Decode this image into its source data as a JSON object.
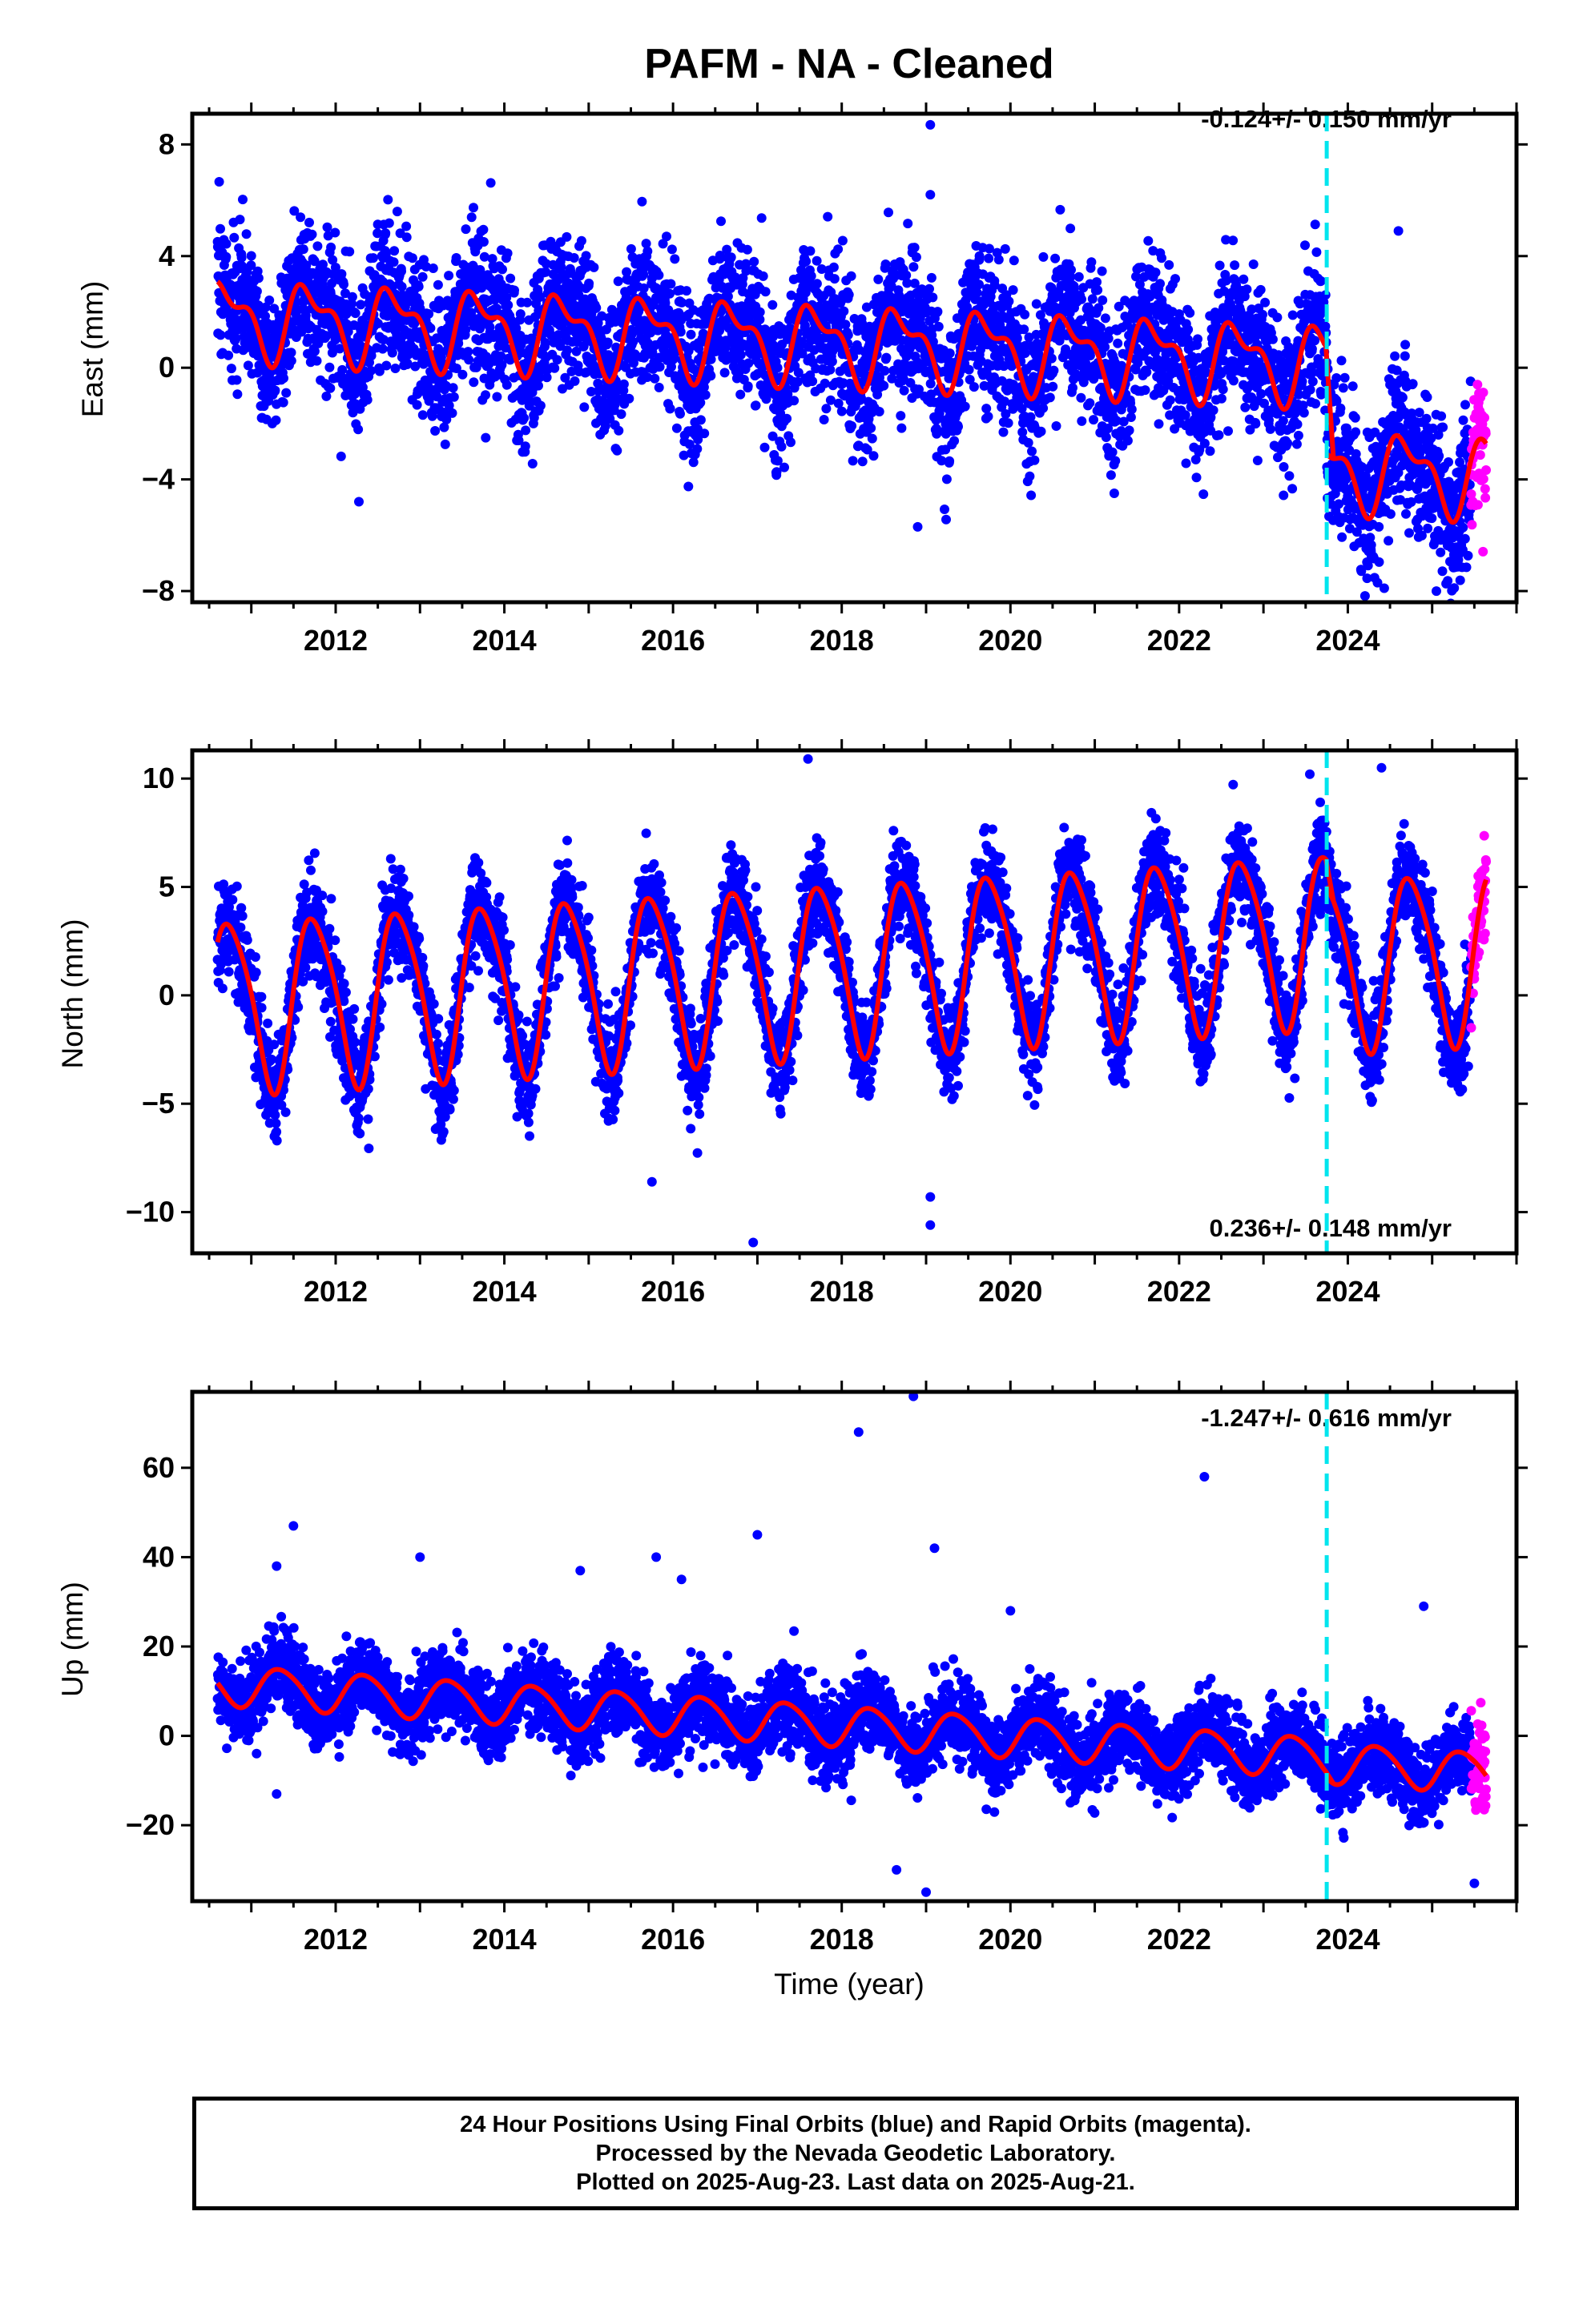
{
  "title": "PAFM  - NA - Cleaned",
  "footer": {
    "line1": "24 Hour Positions Using Final Orbits (blue) and Rapid Orbits (magenta).",
    "line2": "Processed by the Nevada Geodetic Laboratory.",
    "line3": "Plotted on 2025-Aug-23. Last data on 2025-Aug-21."
  },
  "colors": {
    "final_orbits": "#0000ff",
    "rapid_orbits": "#ff00ff",
    "model": "#ff0000",
    "equipment_change": "#00e5ee"
  },
  "chart_data": [
    {
      "type": "scatter",
      "name": "east",
      "ylabel": "East (mm)",
      "xlabel": "",
      "rate_label": "-0.124+/- 0.150 mm/yr",
      "rate_position": "top-right",
      "xlim": [
        2010.3,
        2026.0
      ],
      "ylim": [
        -8.4,
        9.1
      ],
      "yticks": [
        -8,
        -4,
        0,
        4,
        8
      ],
      "ytick_labels": [
        "−8",
        "−4",
        "0",
        "4",
        "8"
      ],
      "xticks": [
        2012,
        2014,
        2016,
        2018,
        2020,
        2022,
        2024
      ],
      "xtick_labels": [
        "2012",
        "2014",
        "2016",
        "2018",
        "2020",
        "2022",
        "2024"
      ],
      "x_start": 2010.6,
      "x_end": 2025.64,
      "rapid_start": 2025.46,
      "step_epoch": 2023.75,
      "model": {
        "offset": 1.8,
        "trend": -0.124,
        "annual_amp": 1.2,
        "annual_phase": 0.45,
        "semiannual_amp": 0.6,
        "step": -3.8,
        "noise_sd": 1.3
      },
      "outliers": [
        [
          2019.05,
          8.7
        ],
        [
          2019.05,
          6.2
        ],
        [
          2018.9,
          -5.7
        ],
        [
          2024.6,
          4.9
        ],
        [
          2025.05,
          -8.0
        ]
      ]
    },
    {
      "type": "scatter",
      "name": "north",
      "ylabel": "North (mm)",
      "xlabel": "",
      "rate_label": "0.236+/- 0.148 mm/yr",
      "rate_position": "bottom-right",
      "xlim": [
        2010.3,
        2026.0
      ],
      "ylim": [
        -11.9,
        11.3
      ],
      "yticks": [
        -10,
        -5,
        0,
        5,
        10
      ],
      "ytick_labels": [
        "−10",
        "−5",
        "0",
        "5",
        "10"
      ],
      "xticks": [
        2012,
        2014,
        2016,
        2018,
        2020,
        2022,
        2024
      ],
      "xtick_labels": [
        "2012",
        "2014",
        "2016",
        "2018",
        "2020",
        "2022",
        "2024"
      ],
      "x_start": 2010.6,
      "x_end": 2025.64,
      "rapid_start": 2025.46,
      "step_epoch": 2023.75,
      "model": {
        "offset": -0.4,
        "trend": 0.236,
        "annual_amp": 3.9,
        "annual_phase": 0.5,
        "semiannual_amp": 0.6,
        "step": -1.2,
        "noise_sd": 1.1
      },
      "outliers": [
        [
          2017.6,
          10.9
        ],
        [
          2016.95,
          -11.4
        ],
        [
          2019.05,
          -10.6
        ],
        [
          2019.05,
          -9.3
        ],
        [
          2015.75,
          -8.6
        ],
        [
          2024.4,
          10.5
        ],
        [
          2023.55,
          10.2
        ]
      ]
    },
    {
      "type": "scatter",
      "name": "up",
      "ylabel": "Up (mm)",
      "xlabel": "Time (year)",
      "rate_label": "-1.247+/- 0.616 mm/yr",
      "rate_position": "top-right",
      "xlim": [
        2010.3,
        2026.0
      ],
      "ylim": [
        -37,
        77
      ],
      "yticks": [
        -20,
        0,
        20,
        40,
        60
      ],
      "ytick_labels": [
        "−20",
        "0",
        "20",
        "40",
        "60"
      ],
      "xticks": [
        2012,
        2014,
        2016,
        2018,
        2020,
        2022,
        2024
      ],
      "xtick_labels": [
        "2012",
        "2014",
        "2016",
        "2018",
        "2020",
        "2022",
        "2024"
      ],
      "x_start": 2010.6,
      "x_end": 2025.64,
      "rapid_start": 2025.46,
      "step_epoch": 2023.75,
      "model": {
        "offset": 11.5,
        "trend": -1.247,
        "annual_amp": 4.5,
        "annual_phase": 0.1,
        "semiannual_amp": 0.5,
        "step": -1.0,
        "noise_sd": 4.5
      },
      "outliers": [
        [
          2018.85,
          76
        ],
        [
          2018.2,
          68
        ],
        [
          2022.3,
          58
        ],
        [
          2019.1,
          42
        ],
        [
          2017.0,
          45
        ],
        [
          2011.5,
          47
        ],
        [
          2013.0,
          40
        ],
        [
          2011.3,
          38
        ],
        [
          2015.8,
          40
        ],
        [
          2016.1,
          35
        ],
        [
          2020.0,
          28
        ],
        [
          2024.9,
          29
        ],
        [
          2014.9,
          37
        ],
        [
          2018.65,
          -30
        ],
        [
          2019.0,
          -35
        ],
        [
          2025.5,
          -33
        ],
        [
          2011.3,
          -13
        ]
      ]
    }
  ]
}
